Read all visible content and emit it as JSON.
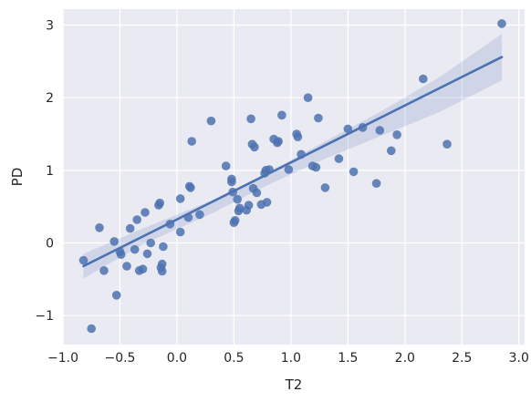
{
  "chart_data": {
    "type": "scatter",
    "title": "",
    "xlabel": "T2",
    "ylabel": "PD",
    "xlim": [
      -1.0,
      3.05
    ],
    "ylim": [
      -1.4,
      3.22
    ],
    "xticks": [
      -1.0,
      -0.5,
      0.0,
      0.5,
      1.0,
      1.5,
      2.0,
      2.5,
      3.0
    ],
    "xtick_labels": [
      "−1.0",
      "−0.5",
      "0.0",
      "0.5",
      "1.0",
      "1.5",
      "2.0",
      "2.5",
      "3.0"
    ],
    "yticks": [
      -1,
      0,
      1,
      2,
      3
    ],
    "ytick_labels": [
      "−1",
      "0",
      "1",
      "2",
      "3"
    ],
    "grid": true,
    "background": "#eaeaf2",
    "grid_color": "#ffffff",
    "point_color": "#4c72b0",
    "line_color": "#4c72b0",
    "band_color": "#4c72b0",
    "points": [
      {
        "x": -0.82,
        "y": -0.24
      },
      {
        "x": -0.75,
        "y": -1.18
      },
      {
        "x": -0.68,
        "y": 0.21
      },
      {
        "x": -0.64,
        "y": -0.38
      },
      {
        "x": -0.55,
        "y": 0.02
      },
      {
        "x": -0.53,
        "y": -0.72
      },
      {
        "x": -0.5,
        "y": -0.12
      },
      {
        "x": -0.49,
        "y": -0.16
      },
      {
        "x": -0.44,
        "y": -0.32
      },
      {
        "x": -0.41,
        "y": 0.2
      },
      {
        "x": -0.37,
        "y": -0.09
      },
      {
        "x": -0.35,
        "y": 0.32
      },
      {
        "x": -0.33,
        "y": -0.38
      },
      {
        "x": -0.3,
        "y": -0.36
      },
      {
        "x": -0.28,
        "y": 0.42
      },
      {
        "x": -0.26,
        "y": -0.15
      },
      {
        "x": -0.23,
        "y": 0.0
      },
      {
        "x": -0.16,
        "y": 0.52
      },
      {
        "x": -0.15,
        "y": 0.55
      },
      {
        "x": -0.14,
        "y": -0.34
      },
      {
        "x": -0.13,
        "y": -0.29
      },
      {
        "x": -0.13,
        "y": -0.39
      },
      {
        "x": -0.12,
        "y": -0.05
      },
      {
        "x": -0.06,
        "y": 0.26
      },
      {
        "x": 0.03,
        "y": 0.61
      },
      {
        "x": 0.03,
        "y": 0.15
      },
      {
        "x": 0.1,
        "y": 0.35
      },
      {
        "x": 0.11,
        "y": 0.78
      },
      {
        "x": 0.12,
        "y": 0.76
      },
      {
        "x": 0.13,
        "y": 1.4
      },
      {
        "x": 0.2,
        "y": 0.39
      },
      {
        "x": 0.3,
        "y": 1.68
      },
      {
        "x": 0.43,
        "y": 1.06
      },
      {
        "x": 0.48,
        "y": 0.84
      },
      {
        "x": 0.48,
        "y": 0.88
      },
      {
        "x": 0.49,
        "y": 0.7
      },
      {
        "x": 0.5,
        "y": 0.28
      },
      {
        "x": 0.51,
        "y": 0.31
      },
      {
        "x": 0.53,
        "y": 0.6
      },
      {
        "x": 0.54,
        "y": 0.44
      },
      {
        "x": 0.55,
        "y": 0.48
      },
      {
        "x": 0.61,
        "y": 0.45
      },
      {
        "x": 0.63,
        "y": 0.52
      },
      {
        "x": 0.65,
        "y": 1.71
      },
      {
        "x": 0.66,
        "y": 1.36
      },
      {
        "x": 0.67,
        "y": 0.75
      },
      {
        "x": 0.68,
        "y": 1.32
      },
      {
        "x": 0.7,
        "y": 0.69
      },
      {
        "x": 0.74,
        "y": 0.53
      },
      {
        "x": 0.77,
        "y": 0.96
      },
      {
        "x": 0.78,
        "y": 1.0
      },
      {
        "x": 0.79,
        "y": 0.56
      },
      {
        "x": 0.81,
        "y": 1.01
      },
      {
        "x": 0.85,
        "y": 1.43
      },
      {
        "x": 0.88,
        "y": 1.38
      },
      {
        "x": 0.89,
        "y": 1.4
      },
      {
        "x": 0.92,
        "y": 1.76
      },
      {
        "x": 0.98,
        "y": 1.01
      },
      {
        "x": 1.05,
        "y": 1.5
      },
      {
        "x": 1.06,
        "y": 1.46
      },
      {
        "x": 1.09,
        "y": 1.22
      },
      {
        "x": 1.15,
        "y": 2.0
      },
      {
        "x": 1.19,
        "y": 1.06
      },
      {
        "x": 1.22,
        "y": 1.04
      },
      {
        "x": 1.24,
        "y": 1.72
      },
      {
        "x": 1.3,
        "y": 0.76
      },
      {
        "x": 1.42,
        "y": 1.16
      },
      {
        "x": 1.5,
        "y": 1.57
      },
      {
        "x": 1.55,
        "y": 0.98
      },
      {
        "x": 1.63,
        "y": 1.59
      },
      {
        "x": 1.75,
        "y": 0.82
      },
      {
        "x": 1.78,
        "y": 1.55
      },
      {
        "x": 1.88,
        "y": 1.27
      },
      {
        "x": 1.93,
        "y": 1.49
      },
      {
        "x": 2.16,
        "y": 2.26
      },
      {
        "x": 2.37,
        "y": 1.36
      },
      {
        "x": 2.85,
        "y": 3.02
      }
    ],
    "regression_line": {
      "x": [
        -0.82,
        2.85
      ],
      "y": [
        -0.32,
        2.56
      ]
    },
    "confidence_band": {
      "x": [
        -0.82,
        -0.3,
        0.3,
        0.8,
        1.3,
        1.8,
        2.3,
        2.85
      ],
      "upper": [
        -0.15,
        0.2,
        0.58,
        0.97,
        1.4,
        1.82,
        2.28,
        2.88
      ],
      "lower": [
        -0.49,
        -0.02,
        0.4,
        0.8,
        1.16,
        1.48,
        1.8,
        2.24
      ]
    }
  }
}
